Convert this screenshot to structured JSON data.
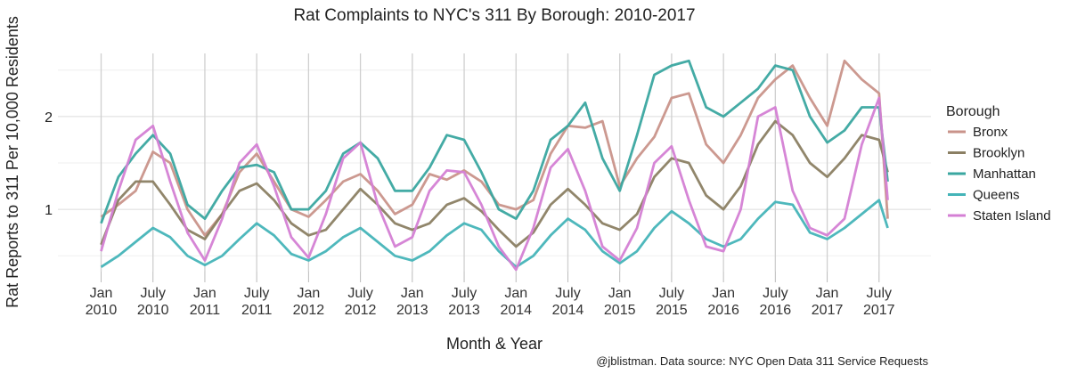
{
  "chart_data": {
    "type": "line",
    "title": "Rat Complaints to NYC's 311 By Borough: 2010-2017",
    "x_label": "Month & Year",
    "y_label": "Rat Reports to 311 Per 10,000 Residents",
    "caption": "@jblistman. Data source: NYC Open Data 311 Service Requests",
    "legend_title": "Borough",
    "legend": "right",
    "grid": true,
    "xlim": [
      "2009-08",
      "2018-01"
    ],
    "xticks": [
      {
        "value": "2010-01",
        "label": "Jan\n2010"
      },
      {
        "value": "2010-07",
        "label": "July\n2010"
      },
      {
        "value": "2011-01",
        "label": "Jan\n2011"
      },
      {
        "value": "2011-07",
        "label": "July\n2011"
      },
      {
        "value": "2012-01",
        "label": "Jan\n2012"
      },
      {
        "value": "2012-07",
        "label": "July\n2012"
      },
      {
        "value": "2013-01",
        "label": "Jan\n2013"
      },
      {
        "value": "2013-07",
        "label": "July\n2013"
      },
      {
        "value": "2014-01",
        "label": "Jan\n2014"
      },
      {
        "value": "2014-07",
        "label": "July\n2014"
      },
      {
        "value": "2015-01",
        "label": "Jan\n2015"
      },
      {
        "value": "2015-07",
        "label": "July\n2015"
      },
      {
        "value": "2016-01",
        "label": "Jan\n2016"
      },
      {
        "value": "2016-07",
        "label": "July\n2016"
      },
      {
        "value": "2017-01",
        "label": "Jan\n2017"
      },
      {
        "value": "2017-07",
        "label": "July\n2017"
      }
    ],
    "ylim": [
      0.33,
      2.68
    ],
    "yticks": [
      1,
      2
    ],
    "x": [
      "2010-01",
      "2010-03",
      "2010-05",
      "2010-07",
      "2010-09",
      "2010-11",
      "2011-01",
      "2011-03",
      "2011-05",
      "2011-07",
      "2011-09",
      "2011-11",
      "2012-01",
      "2012-03",
      "2012-05",
      "2012-07",
      "2012-09",
      "2012-11",
      "2013-01",
      "2013-03",
      "2013-05",
      "2013-07",
      "2013-09",
      "2013-11",
      "2014-01",
      "2014-03",
      "2014-05",
      "2014-07",
      "2014-09",
      "2014-11",
      "2015-01",
      "2015-03",
      "2015-05",
      "2015-07",
      "2015-09",
      "2015-11",
      "2016-01",
      "2016-03",
      "2016-05",
      "2016-07",
      "2016-09",
      "2016-11",
      "2017-01",
      "2017-03",
      "2017-05",
      "2017-07",
      "2017-08"
    ],
    "series": [
      {
        "name": "Bronx",
        "color": "#c9938a",
        "values": [
          0.92,
          1.05,
          1.2,
          1.62,
          1.5,
          1.0,
          0.72,
          0.95,
          1.4,
          1.6,
          1.3,
          1.0,
          0.92,
          1.1,
          1.3,
          1.38,
          1.2,
          0.95,
          1.05,
          1.38,
          1.32,
          1.42,
          1.3,
          1.05,
          1.0,
          1.1,
          1.6,
          1.9,
          1.88,
          1.95,
          1.25,
          1.55,
          1.78,
          2.2,
          2.25,
          1.7,
          1.5,
          1.8,
          2.2,
          2.4,
          2.55,
          2.2,
          1.9,
          2.6,
          2.4,
          2.25,
          0.9
        ]
      },
      {
        "name": "Brooklyn",
        "color": "#8b7f63",
        "values": [
          0.62,
          1.1,
          1.3,
          1.3,
          1.05,
          0.78,
          0.68,
          0.95,
          1.2,
          1.28,
          1.1,
          0.85,
          0.72,
          0.78,
          1.0,
          1.22,
          1.05,
          0.85,
          0.78,
          0.85,
          1.05,
          1.12,
          0.98,
          0.78,
          0.6,
          0.75,
          1.05,
          1.22,
          1.05,
          0.85,
          0.78,
          0.95,
          1.35,
          1.55,
          1.5,
          1.15,
          1.0,
          1.25,
          1.7,
          1.95,
          1.8,
          1.5,
          1.35,
          1.55,
          1.8,
          1.75,
          1.4
        ]
      },
      {
        "name": "Manhattan",
        "color": "#3aa7a0",
        "values": [
          0.85,
          1.35,
          1.6,
          1.8,
          1.6,
          1.05,
          0.9,
          1.2,
          1.45,
          1.48,
          1.4,
          1.0,
          1.0,
          1.2,
          1.6,
          1.72,
          1.55,
          1.2,
          1.2,
          1.45,
          1.8,
          1.75,
          1.4,
          1.0,
          0.9,
          1.2,
          1.75,
          1.9,
          2.15,
          1.55,
          1.2,
          1.8,
          2.45,
          2.55,
          2.6,
          2.1,
          2.0,
          2.15,
          2.3,
          2.55,
          2.5,
          2.0,
          1.72,
          1.85,
          2.1,
          2.1,
          1.3
        ]
      },
      {
        "name": "Queens",
        "color": "#44b4b8",
        "values": [
          0.38,
          0.5,
          0.65,
          0.8,
          0.7,
          0.5,
          0.4,
          0.5,
          0.68,
          0.85,
          0.72,
          0.52,
          0.45,
          0.55,
          0.7,
          0.8,
          0.65,
          0.5,
          0.45,
          0.55,
          0.72,
          0.85,
          0.78,
          0.55,
          0.38,
          0.5,
          0.72,
          0.9,
          0.78,
          0.55,
          0.42,
          0.55,
          0.8,
          0.98,
          0.85,
          0.68,
          0.6,
          0.68,
          0.9,
          1.08,
          1.05,
          0.75,
          0.68,
          0.8,
          0.95,
          1.1,
          0.8
        ]
      },
      {
        "name": "Staten Island",
        "color": "#d47fd4",
        "values": [
          0.55,
          1.2,
          1.75,
          1.9,
          1.3,
          0.75,
          0.45,
          0.9,
          1.5,
          1.7,
          1.25,
          0.7,
          0.48,
          0.95,
          1.55,
          1.72,
          1.05,
          0.6,
          0.7,
          1.2,
          1.42,
          1.4,
          1.05,
          0.6,
          0.35,
          0.8,
          1.45,
          1.65,
          1.2,
          0.6,
          0.45,
          0.8,
          1.5,
          1.68,
          1.1,
          0.6,
          0.55,
          1.0,
          2.0,
          2.1,
          1.2,
          0.8,
          0.72,
          0.9,
          1.7,
          2.2,
          1.1
        ]
      }
    ]
  }
}
